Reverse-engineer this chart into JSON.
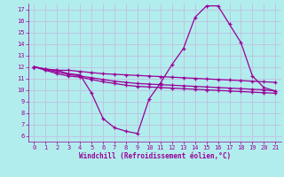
{
  "xlabel": "Windchill (Refroidissement éolien,°C)",
  "background_color": "#b2eded",
  "grid_color": "#c0c0e0",
  "line_color": "#990099",
  "xlim": [
    -0.5,
    21.5
  ],
  "ylim": [
    5.5,
    17.5
  ],
  "xticks": [
    0,
    1,
    2,
    3,
    4,
    5,
    6,
    7,
    8,
    9,
    10,
    11,
    12,
    13,
    14,
    15,
    16,
    17,
    18,
    19,
    20,
    21
  ],
  "yticks": [
    6,
    7,
    8,
    9,
    10,
    11,
    12,
    13,
    14,
    15,
    16,
    17
  ],
  "line1_x": [
    0,
    1,
    2,
    3,
    4,
    5,
    6,
    7,
    8,
    9,
    10,
    11,
    12,
    13,
    14,
    15,
    16,
    17,
    18,
    19,
    20,
    21
  ],
  "line1_y": [
    12.0,
    11.8,
    11.7,
    11.7,
    11.6,
    11.5,
    11.4,
    11.35,
    11.3,
    11.25,
    11.2,
    11.15,
    11.1,
    11.05,
    11.0,
    10.95,
    10.9,
    10.85,
    10.8,
    10.75,
    10.7,
    10.65
  ],
  "line2_x": [
    0,
    1,
    2,
    3,
    4,
    5,
    6,
    7,
    8,
    9,
    10,
    11,
    12,
    13,
    14,
    15,
    16,
    17,
    18,
    19,
    20,
    21
  ],
  "line2_y": [
    12.0,
    11.8,
    11.7,
    11.4,
    11.3,
    9.7,
    7.5,
    6.7,
    6.4,
    6.2,
    9.2,
    10.6,
    12.2,
    13.6,
    16.3,
    17.3,
    17.3,
    15.7,
    14.1,
    11.2,
    10.2,
    9.9
  ],
  "line3_x": [
    0,
    1,
    2,
    3,
    4,
    5,
    6,
    7,
    8,
    9,
    10,
    11,
    12,
    13,
    14,
    15,
    16,
    17,
    18,
    19,
    20,
    21
  ],
  "line3_y": [
    12.0,
    11.7,
    11.4,
    11.2,
    11.1,
    10.9,
    10.7,
    10.55,
    10.4,
    10.3,
    10.25,
    10.2,
    10.15,
    10.1,
    10.05,
    10.0,
    9.95,
    9.9,
    9.85,
    9.8,
    9.75,
    9.7
  ],
  "line4_x": [
    0,
    1,
    2,
    3,
    4,
    5,
    6,
    7,
    8,
    9,
    10,
    11,
    12,
    13,
    14,
    15,
    16,
    17,
    18,
    19,
    20,
    21
  ],
  "line4_y": [
    12.0,
    11.75,
    11.55,
    11.35,
    11.2,
    11.05,
    10.9,
    10.75,
    10.65,
    10.55,
    10.5,
    10.45,
    10.4,
    10.35,
    10.3,
    10.25,
    10.2,
    10.15,
    10.1,
    10.05,
    10.0,
    9.9
  ]
}
